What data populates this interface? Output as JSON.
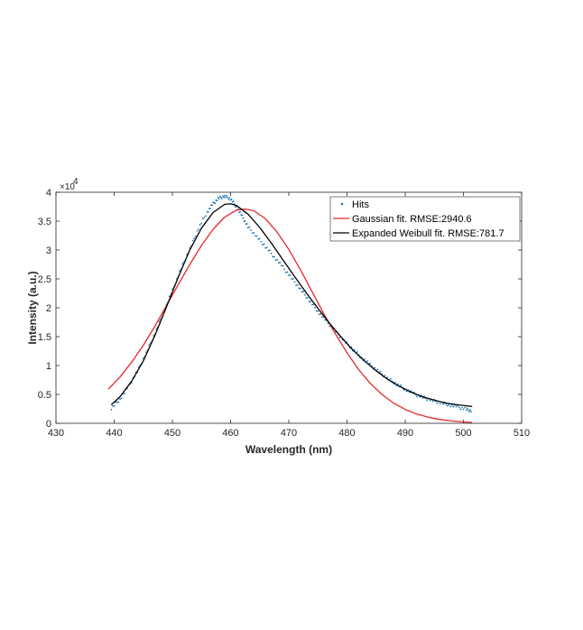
{
  "chart_data": {
    "type": "line",
    "title": "",
    "xlabel": "Wavelength (nm)",
    "ylabel": "Intensity (a.u.)",
    "xlim": [
      430,
      510
    ],
    "ylim": [
      0,
      40000
    ],
    "x_ticks": [
      430,
      440,
      450,
      460,
      470,
      480,
      490,
      500,
      510
    ],
    "y_ticks": [
      0,
      5000,
      10000,
      15000,
      20000,
      25000,
      30000,
      35000,
      40000
    ],
    "y_tick_labels": [
      "0",
      "0.5",
      "1",
      "1.5",
      "2",
      "2.5",
      "3",
      "3.5",
      "4"
    ],
    "y_exponent_base": "×10",
    "y_exponent_power": "4",
    "grid": false,
    "legend_position": "top-right",
    "series": [
      {
        "name": "Hits",
        "kind": "points",
        "color": "#1f77b4",
        "x": [
          439.5,
          441,
          442.5,
          444,
          445.5,
          447,
          448.5,
          450,
          451.5,
          453,
          454.5,
          456,
          457,
          458,
          459,
          460,
          461,
          462,
          463,
          464.5,
          466,
          467.5,
          469,
          470.5,
          472,
          473.5,
          475,
          476.5,
          478,
          479.5,
          481,
          482.5,
          484,
          485.5,
          487,
          488.5,
          490,
          491.5,
          493,
          494.5,
          496,
          497.5,
          499,
          500.5,
          501.5
        ],
        "y": [
          2600,
          4200,
          6400,
          9000,
          12200,
          15600,
          19200,
          23000,
          26800,
          30200,
          33800,
          36600,
          38000,
          39000,
          39300,
          38900,
          37500,
          35800,
          34000,
          32300,
          30600,
          28800,
          27000,
          25100,
          23200,
          21300,
          19400,
          17600,
          15900,
          14300,
          12800,
          11400,
          10100,
          8900,
          7800,
          6800,
          5900,
          5100,
          4500,
          4000,
          3600,
          3200,
          2800,
          2400,
          2100
        ]
      },
      {
        "name": "Gaussian fit. RMSE:2940.6",
        "kind": "line",
        "color": "#e8282b",
        "x": [
          439,
          441,
          443,
          445,
          447,
          449,
          451,
          453,
          455,
          457,
          459,
          461,
          462.5,
          464,
          466,
          468,
          470,
          472,
          474,
          476,
          478,
          480,
          482,
          484,
          486,
          488,
          490,
          492,
          494,
          496,
          498,
          500,
          501.5
        ],
        "y": [
          5900,
          8000,
          10600,
          13500,
          16800,
          20400,
          24000,
          27500,
          30800,
          33600,
          35700,
          36900,
          37100,
          36800,
          35400,
          33100,
          30100,
          26600,
          22800,
          19000,
          15500,
          12200,
          9300,
          6900,
          5000,
          3500,
          2400,
          1600,
          1050,
          650,
          400,
          230,
          150
        ]
      },
      {
        "name": "Expanded Weibull fit. RMSE:781.7",
        "kind": "line",
        "color": "#000000",
        "x": [
          439.5,
          441,
          443,
          445,
          447,
          449,
          451,
          453,
          455,
          457,
          459,
          460,
          461,
          463,
          465,
          467,
          469,
          471,
          473,
          475,
          477,
          479,
          481,
          483,
          485,
          487,
          489,
          491,
          493,
          495,
          497,
          499,
          501.5
        ],
        "y": [
          3200,
          4600,
          7300,
          10800,
          15200,
          20200,
          25300,
          30000,
          33800,
          36500,
          37900,
          38000,
          37700,
          36200,
          33900,
          31200,
          28300,
          25400,
          22600,
          19900,
          17300,
          14900,
          12700,
          10800,
          9100,
          7600,
          6400,
          5400,
          4600,
          4000,
          3500,
          3200,
          2900
        ]
      }
    ]
  }
}
